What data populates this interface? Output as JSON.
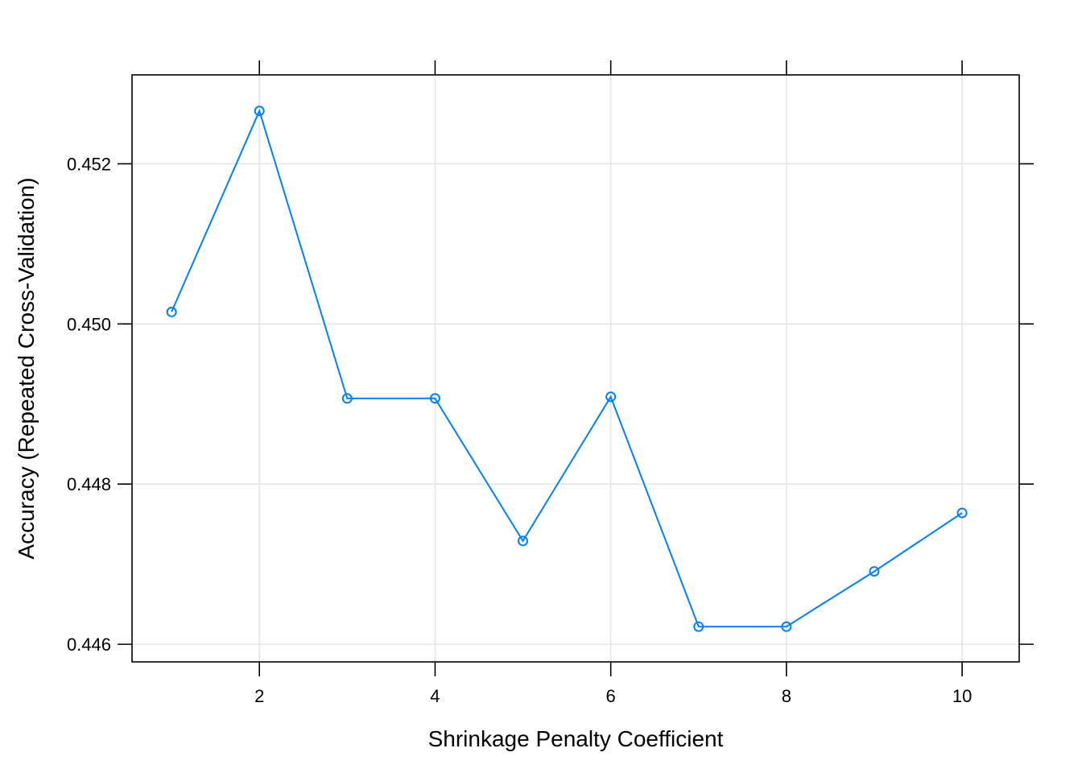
{
  "chart_data": {
    "type": "line",
    "title": "",
    "xlabel": "Shrinkage Penalty Coefficient",
    "ylabel": "Accuracy (Repeated Cross-Validation)",
    "x": [
      1,
      2,
      3,
      4,
      5,
      6,
      7,
      8,
      9,
      10
    ],
    "series": [
      {
        "values": [
          0.45015,
          0.45266,
          0.44907,
          0.44907,
          0.44729,
          0.44909,
          0.44622,
          0.44622,
          0.44691,
          0.44764
        ]
      }
    ],
    "xlim": [
      0.55,
      10.65
    ],
    "ylim": [
      0.44578,
      0.45311
    ],
    "xticks": [
      2,
      4,
      6,
      8,
      10
    ],
    "xtick_labels": [
      "2",
      "4",
      "6",
      "8",
      "10"
    ],
    "yticks": [
      0.446,
      0.448,
      0.45,
      0.452
    ],
    "ytick_labels": [
      "0.446",
      "0.448",
      "0.450",
      "0.452"
    ],
    "grid": true,
    "marker": "open-circle",
    "line_color": "#0080ff",
    "grid_color": "#e6e6e6"
  }
}
